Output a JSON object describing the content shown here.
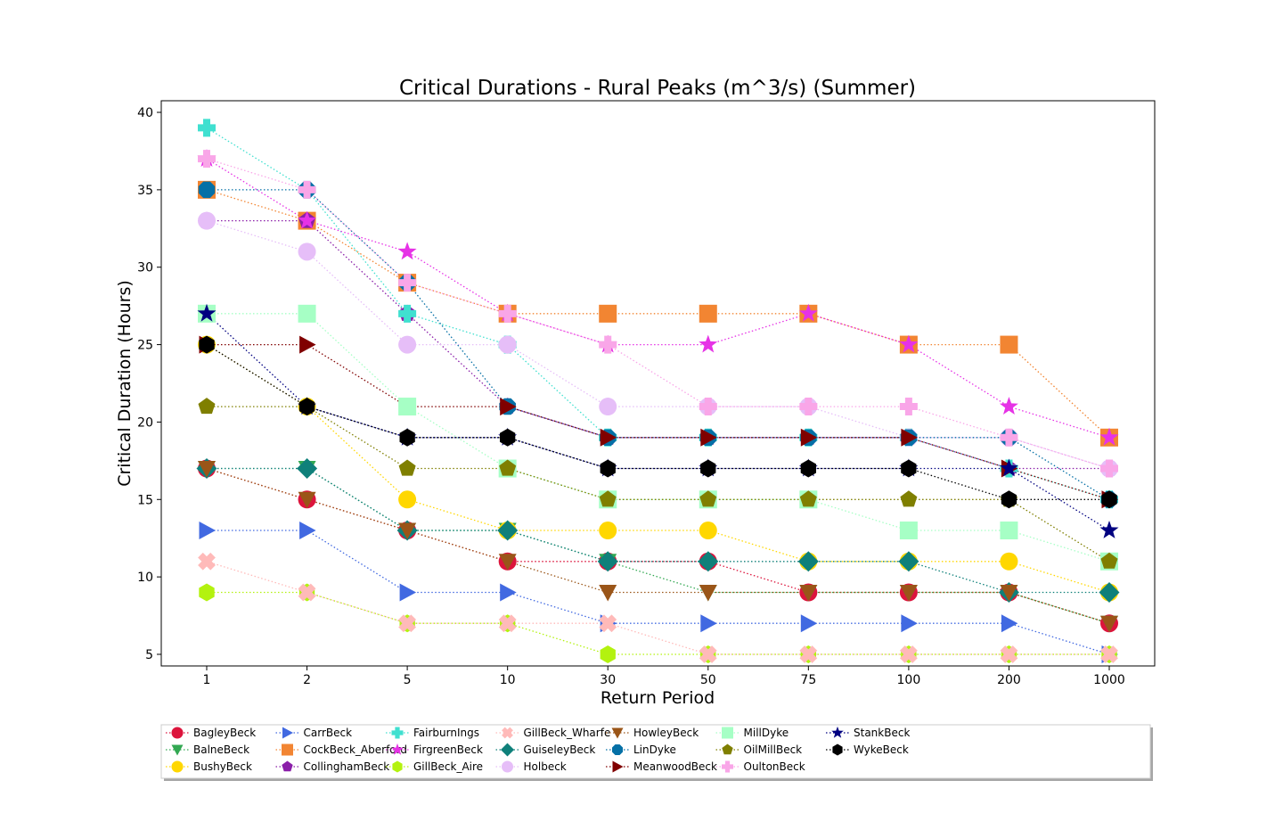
{
  "chart_data": {
    "type": "line",
    "title": "Critical Durations - Rural Peaks (m^3/s) (Summer)",
    "xlabel": "Return Period",
    "ylabel": "Critical Duration (Hours)",
    "categories": [
      "1",
      "2",
      "5",
      "10",
      "30",
      "50",
      "75",
      "100",
      "200",
      "1000"
    ],
    "ylim": [
      4.25,
      40.75
    ],
    "yticks": [
      5,
      10,
      15,
      20,
      25,
      30,
      35,
      40
    ],
    "grid": false,
    "legend_position": "below",
    "series": [
      {
        "name": "BagleyBeck",
        "color": "#dc143c",
        "marker": "circle",
        "values": [
          17,
          15,
          13,
          11,
          11,
          11,
          9,
          9,
          9,
          7
        ]
      },
      {
        "name": "BalneBeck",
        "color": "#32a852",
        "marker": "triangle-down",
        "values": [
          17,
          17,
          13,
          13,
          11,
          9,
          9,
          9,
          9,
          7
        ]
      },
      {
        "name": "BushyBeck",
        "color": "#ffd700",
        "marker": "circle",
        "values": [
          25,
          21,
          15,
          13,
          13,
          13,
          11,
          11,
          11,
          9
        ]
      },
      {
        "name": "CarrBeck",
        "color": "#4169e1",
        "marker": "triangle-right",
        "values": [
          13,
          13,
          9,
          9,
          7,
          7,
          7,
          7,
          7,
          5
        ]
      },
      {
        "name": "CockBeck_Aberford",
        "color": "#f28532",
        "marker": "square",
        "values": [
          35,
          33,
          29,
          27,
          27,
          27,
          27,
          25,
          25,
          19
        ]
      },
      {
        "name": "CollinghamBeck",
        "color": "#8b1fa9",
        "marker": "pentagon",
        "values": [
          33,
          33,
          27,
          21,
          19,
          19,
          19,
          19,
          17,
          17
        ]
      },
      {
        "name": "FairburnIngs",
        "color": "#40e0d0",
        "marker": "plus",
        "values": [
          39,
          35,
          27,
          25,
          19,
          19,
          19,
          19,
          17,
          15
        ]
      },
      {
        "name": "FirgreenBeck",
        "color": "#e632e6",
        "marker": "star",
        "values": [
          37,
          33,
          31,
          27,
          25,
          25,
          27,
          25,
          21,
          19
        ]
      },
      {
        "name": "GillBeck_Aire",
        "color": "#b3f20f",
        "marker": "hexagon",
        "values": [
          9,
          9,
          7,
          7,
          5,
          5,
          5,
          5,
          5,
          5
        ]
      },
      {
        "name": "GillBeck_Wharfe",
        "color": "#ffbab9",
        "marker": "x",
        "values": [
          11,
          9,
          7,
          7,
          7,
          5,
          5,
          5,
          5,
          5
        ]
      },
      {
        "name": "GuiseleyBeck",
        "color": "#0f807a",
        "marker": "diamond",
        "values": [
          17,
          17,
          13,
          13,
          11,
          11,
          11,
          11,
          9,
          9
        ]
      },
      {
        "name": "Holbeck",
        "color": "#e6bef8",
        "marker": "circle",
        "values": [
          33,
          31,
          25,
          25,
          21,
          21,
          21,
          19,
          19,
          17
        ]
      },
      {
        "name": "HowleyBeck",
        "color": "#9a5518",
        "marker": "triangle-down",
        "values": [
          17,
          15,
          13,
          11,
          9,
          9,
          9,
          9,
          9,
          7
        ]
      },
      {
        "name": "LinDyke",
        "color": "#0570a6",
        "marker": "octagon",
        "values": [
          35,
          35,
          29,
          21,
          19,
          19,
          19,
          19,
          19,
          15
        ]
      },
      {
        "name": "MeanwoodBeck",
        "color": "#800000",
        "marker": "triangle-right",
        "values": [
          25,
          25,
          21,
          21,
          19,
          19,
          19,
          19,
          17,
          15
        ]
      },
      {
        "name": "MillDyke",
        "color": "#a6ffc5",
        "marker": "square",
        "values": [
          27,
          27,
          21,
          17,
          15,
          15,
          15,
          13,
          13,
          11
        ]
      },
      {
        "name": "OilMillBeck",
        "color": "#7f7f00",
        "marker": "pentagon",
        "values": [
          21,
          21,
          17,
          17,
          15,
          15,
          15,
          15,
          15,
          11
        ]
      },
      {
        "name": "OultonBeck",
        "color": "#f9a6e8",
        "marker": "plus",
        "values": [
          37,
          35,
          29,
          27,
          25,
          21,
          21,
          21,
          19,
          17
        ]
      },
      {
        "name": "StankBeck",
        "color": "#000080",
        "marker": "star",
        "values": [
          27,
          21,
          19,
          19,
          17,
          17,
          17,
          17,
          17,
          13
        ]
      },
      {
        "name": "WykeBeck",
        "color": "#000000",
        "marker": "hexagon",
        "values": [
          25,
          21,
          19,
          19,
          17,
          17,
          17,
          17,
          15,
          15
        ]
      }
    ]
  }
}
